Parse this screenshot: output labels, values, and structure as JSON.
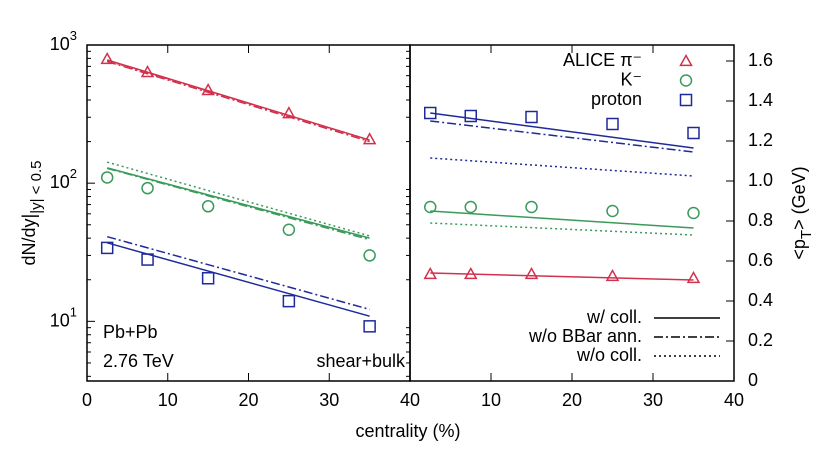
{
  "chart_data": [
    {
      "type": "scatter",
      "log_y": true,
      "ylabel": "dN/dy|",
      "ylabel_sub": "|y| < 0.5",
      "xlim": [
        0,
        40
      ],
      "xticks": [
        0,
        10,
        20,
        30,
        40
      ],
      "ylim": [
        3.7,
        1000
      ],
      "yticks": [
        {
          "value": 10,
          "label": "10",
          "exponent": "1"
        },
        {
          "value": 100,
          "label": "10",
          "exponent": "2"
        },
        {
          "value": 1000,
          "label": "10",
          "exponent": "3"
        }
      ],
      "x": [
        2.5,
        7.5,
        15,
        25,
        35
      ],
      "series": [
        {
          "marker": "triangle",
          "color": "#d2304c",
          "values": [
            792,
            637,
            472,
            321,
            208
          ]
        },
        {
          "marker": "circle",
          "color": "#3a9a5a",
          "values": [
            110,
            92,
            68,
            46,
            30
          ]
        },
        {
          "marker": "square",
          "color": "#1e2a9c",
          "values": [
            34,
            28,
            20.5,
            14,
            9.2
          ]
        }
      ],
      "model_x": [
        2.5,
        35
      ],
      "model_lines": [
        {
          "style": 2,
          "color": "#d2304c",
          "values": [
            770,
            205
          ]
        },
        {
          "style": 1,
          "color": "#d2304c",
          "values": [
            760,
            200
          ]
        },
        {
          "style": 0,
          "color": "#d2304c",
          "values": [
            780,
            205
          ]
        },
        {
          "style": 2,
          "color": "#3a9a5a",
          "values": [
            142,
            41.5
          ]
        },
        {
          "style": 1,
          "color": "#3a9a5a",
          "values": [
            128,
            39
          ]
        },
        {
          "style": 0,
          "color": "#3a9a5a",
          "values": [
            129,
            40
          ]
        },
        {
          "style": 1,
          "color": "#1e2a9c",
          "values": [
            41,
            12.2
          ]
        },
        {
          "style": 0,
          "color": "#1e2a9c",
          "values": [
            37,
            10.9
          ]
        }
      ],
      "annotations": [
        "Pb+Pb",
        "2.76 TeV",
        "shear+bulk"
      ]
    },
    {
      "type": "scatter",
      "log_y": false,
      "ylabel": "<p",
      "ylabel_sub": "T",
      "ylabel_end": "> (GeV)",
      "xlabel": "centrality (%)",
      "xlim": [
        0,
        40
      ],
      "xticks": [
        10,
        20,
        30,
        40
      ],
      "ylim": [
        0,
        1.68
      ],
      "yticks": [
        0,
        0.2,
        0.4,
        0.6,
        0.8,
        {
          "value": 1.0,
          "label": "1.0"
        },
        1.2,
        1.4,
        1.6
      ],
      "x": [
        2.5,
        7.5,
        15,
        25,
        35
      ],
      "series": [
        {
          "name": "ALICE  π⁻",
          "marker": "triangle",
          "color": "#d2304c",
          "values": [
            0.535,
            0.535,
            0.535,
            0.525,
            0.515
          ]
        },
        {
          "name": "K⁻",
          "marker": "circle",
          "color": "#3a9a5a",
          "values": [
            0.87,
            0.87,
            0.87,
            0.85,
            0.84
          ]
        },
        {
          "name": "proton",
          "marker": "square",
          "color": "#1e2a9c",
          "values": [
            1.34,
            1.325,
            1.32,
            1.285,
            1.24
          ]
        }
      ],
      "model_styles": [
        {
          "name": "w/ coll.",
          "dash": "none"
        },
        {
          "name": "w/o BBar ann.",
          "dash": "9 3 2 3"
        },
        {
          "name": "w/o coll.",
          "dash": "2 3"
        }
      ],
      "model_x": [
        2.5,
        35
      ],
      "model_lines": [
        {
          "style": 0,
          "color": "#1e2a9c",
          "values": [
            1.34,
            1.165
          ]
        },
        {
          "style": 1,
          "color": "#1e2a9c",
          "values": [
            1.3,
            1.145
          ]
        },
        {
          "style": 2,
          "color": "#1e2a9c",
          "values": [
            1.115,
            1.025
          ]
        },
        {
          "style": 0,
          "color": "#3a9a5a",
          "values": [
            0.85,
            0.765
          ]
        },
        {
          "style": 2,
          "color": "#3a9a5a",
          "values": [
            0.79,
            0.73
          ]
        },
        {
          "style": 0,
          "color": "#d2304c",
          "values": [
            0.54,
            0.505
          ]
        }
      ]
    }
  ]
}
